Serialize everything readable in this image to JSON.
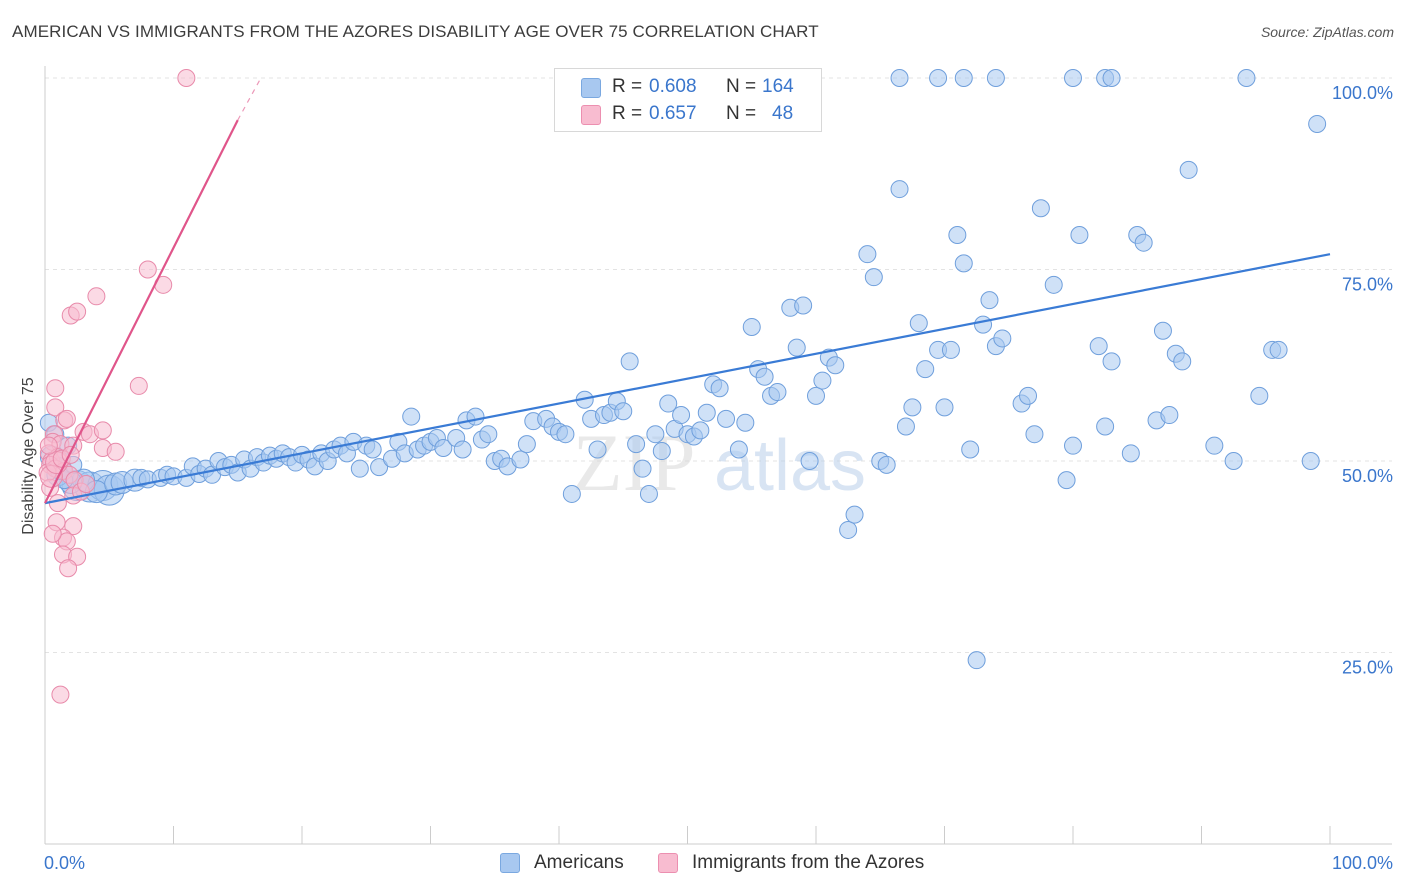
{
  "header": {
    "title": "AMERICAN VS IMMIGRANTS FROM THE AZORES DISABILITY AGE OVER 75 CORRELATION CHART",
    "source": "Source: ZipAtlas.com"
  },
  "watermark": {
    "zip": "ZIP",
    "atlas": "atlas"
  },
  "legend_top": {
    "rows": [
      {
        "r_label": "R =",
        "r_value": "0.608",
        "n_label": "N =",
        "n_value": "164",
        "color": "#a8c8f0",
        "stroke": "#7aa8e0"
      },
      {
        "r_label": "R =",
        "r_value": "0.657",
        "n_label": "N =",
        "n_value": "48",
        "color": "#f8bcd0",
        "stroke": "#ec8fb0"
      }
    ]
  },
  "legend_bottom": {
    "items": [
      {
        "label": "Americans",
        "color": "#a8c8f0",
        "stroke": "#7aa8e0"
      },
      {
        "label": "Immigrants from the Azores",
        "color": "#f8bcd0",
        "stroke": "#ec8fb0"
      }
    ]
  },
  "chart_data": {
    "type": "scatter",
    "title": "AMERICAN VS IMMIGRANTS FROM THE AZORES DISABILITY AGE OVER 75 CORRELATION CHART",
    "xlabel": "",
    "ylabel": "Disability Age Over 75",
    "xlim": [
      0,
      100
    ],
    "ylim": [
      0,
      100
    ],
    "x_tick_labels": [
      "0.0%",
      "100.0%"
    ],
    "y_tick_labels": [
      "25.0%",
      "50.0%",
      "75.0%",
      "100.0%"
    ],
    "y_ticks": [
      25,
      50,
      75,
      100
    ],
    "x_minor_ticks": [
      10,
      20,
      30,
      40,
      50,
      60,
      70,
      80,
      90,
      100
    ],
    "grid": true,
    "series": [
      {
        "name": "Americans",
        "color": "#a8c8f0",
        "stroke": "#6f9fdc",
        "trend": {
          "x": [
            0,
            100
          ],
          "y": [
            44.5,
            77.0
          ],
          "color": "#3a7bd5"
        },
        "points": [
          [
            2.5,
            46.8,
            3
          ],
          [
            3.5,
            46.6,
            3
          ],
          [
            4.5,
            46.8,
            3
          ],
          [
            5.0,
            46.2,
            3
          ],
          [
            3.0,
            47.5,
            2
          ],
          [
            4.0,
            46.0,
            2
          ],
          [
            5.5,
            47.0,
            2
          ],
          [
            2.0,
            47.2,
            2
          ],
          [
            1.0,
            48.2,
            2
          ],
          [
            1.5,
            47.5,
            1
          ],
          [
            6.0,
            47.2,
            2
          ],
          [
            7.0,
            47.5,
            2
          ],
          [
            7.5,
            47.8,
            1
          ],
          [
            8.0,
            47.6,
            1
          ],
          [
            9.0,
            47.8,
            1
          ],
          [
            9.5,
            48.2,
            1
          ],
          [
            10.0,
            48.0,
            1
          ],
          [
            11.0,
            47.8,
            1
          ],
          [
            11.5,
            49.3,
            1
          ],
          [
            12.0,
            48.3,
            1
          ],
          [
            12.5,
            49.0,
            1
          ],
          [
            13.0,
            48.2,
            1
          ],
          [
            13.5,
            50.0,
            1
          ],
          [
            14.0,
            49.2,
            1
          ],
          [
            14.5,
            49.5,
            1
          ],
          [
            15.0,
            48.5,
            1
          ],
          [
            15.5,
            50.2,
            1
          ],
          [
            16.0,
            49.0,
            1
          ],
          [
            16.5,
            50.5,
            1
          ],
          [
            17.0,
            49.8,
            1
          ],
          [
            17.5,
            50.7,
            1
          ],
          [
            18.0,
            50.3,
            1
          ],
          [
            18.5,
            51.0,
            1
          ],
          [
            19.0,
            50.5,
            1
          ],
          [
            19.5,
            49.8,
            1
          ],
          [
            20.0,
            50.8,
            1
          ],
          [
            20.5,
            50.2,
            1
          ],
          [
            21.0,
            49.3,
            1
          ],
          [
            21.5,
            51.0,
            1
          ],
          [
            22.0,
            50.0,
            1
          ],
          [
            22.5,
            51.5,
            1
          ],
          [
            23.0,
            52.0,
            1
          ],
          [
            23.5,
            51.0,
            1
          ],
          [
            24.0,
            52.5,
            1
          ],
          [
            24.5,
            49.0,
            1
          ],
          [
            25.0,
            52.0,
            1
          ],
          [
            25.5,
            51.5,
            1
          ],
          [
            26.0,
            49.2,
            1
          ],
          [
            27.0,
            50.3,
            1
          ],
          [
            27.5,
            52.5,
            1
          ],
          [
            28.0,
            51.0,
            1
          ],
          [
            28.5,
            55.8,
            1
          ],
          [
            29.0,
            51.5,
            1
          ],
          [
            29.5,
            52.0,
            1
          ],
          [
            30.0,
            52.5,
            1
          ],
          [
            30.5,
            53.0,
            1
          ],
          [
            31.0,
            51.7,
            1
          ],
          [
            32.0,
            53.0,
            1
          ],
          [
            32.5,
            51.5,
            1
          ],
          [
            32.8,
            55.3,
            1
          ],
          [
            33.5,
            55.8,
            1
          ],
          [
            34.0,
            52.8,
            1
          ],
          [
            34.5,
            53.5,
            1
          ],
          [
            35.0,
            50.0,
            1
          ],
          [
            35.5,
            50.3,
            1
          ],
          [
            36.0,
            49.3,
            1
          ],
          [
            37.0,
            50.2,
            1
          ],
          [
            37.5,
            52.2,
            1
          ],
          [
            38.0,
            55.2,
            1
          ],
          [
            39.0,
            55.5,
            1
          ],
          [
            39.5,
            54.5,
            1
          ],
          [
            40.0,
            53.8,
            1
          ],
          [
            40.5,
            53.5,
            1
          ],
          [
            41.0,
            45.7,
            1
          ],
          [
            42.0,
            58.0,
            1
          ],
          [
            42.5,
            55.5,
            1
          ],
          [
            43.0,
            51.5,
            1
          ],
          [
            43.5,
            56.0,
            1
          ],
          [
            44.0,
            56.3,
            1
          ],
          [
            44.5,
            57.8,
            1
          ],
          [
            45.0,
            56.5,
            1
          ],
          [
            45.5,
            63.0,
            1
          ],
          [
            46.0,
            52.2,
            1
          ],
          [
            46.5,
            49.0,
            1
          ],
          [
            47.0,
            45.7,
            1
          ],
          [
            47.5,
            53.5,
            1
          ],
          [
            48.0,
            51.3,
            1
          ],
          [
            48.5,
            57.5,
            1
          ],
          [
            49.0,
            54.2,
            1
          ],
          [
            49.5,
            56.0,
            1
          ],
          [
            50.0,
            53.5,
            1
          ],
          [
            50.5,
            53.2,
            1
          ],
          [
            51.0,
            54.0,
            1
          ],
          [
            51.5,
            56.3,
            1
          ],
          [
            52.0,
            60.0,
            1
          ],
          [
            52.5,
            59.5,
            1
          ],
          [
            53.0,
            55.5,
            1
          ],
          [
            54.0,
            51.5,
            1
          ],
          [
            54.5,
            55.0,
            1
          ],
          [
            55.0,
            67.5,
            1
          ],
          [
            55.5,
            62.0,
            1
          ],
          [
            56.0,
            61.0,
            1
          ],
          [
            56.5,
            58.5,
            1
          ],
          [
            57.0,
            59.0,
            1
          ],
          [
            58.0,
            70.0,
            1
          ],
          [
            58.5,
            64.8,
            1
          ],
          [
            59.0,
            70.3,
            1
          ],
          [
            59.5,
            50.0,
            1
          ],
          [
            60.0,
            58.5,
            1
          ],
          [
            60.5,
            60.5,
            1
          ],
          [
            61.0,
            63.5,
            1
          ],
          [
            61.5,
            62.5,
            1
          ],
          [
            62.5,
            41.0,
            1
          ],
          [
            63.0,
            43.0,
            1
          ],
          [
            64.0,
            77.0,
            1
          ],
          [
            64.5,
            74.0,
            1
          ],
          [
            65.0,
            50.0,
            1
          ],
          [
            65.5,
            49.5,
            1
          ],
          [
            66.5,
            85.5,
            1
          ],
          [
            67.0,
            54.5,
            1
          ],
          [
            67.5,
            57.0,
            1
          ],
          [
            68.0,
            68.0,
            1
          ],
          [
            68.5,
            62.0,
            1
          ],
          [
            69.5,
            64.5,
            1
          ],
          [
            70.0,
            57.0,
            1
          ],
          [
            70.5,
            64.5,
            1
          ],
          [
            71.0,
            79.5,
            1
          ],
          [
            71.5,
            75.8,
            1
          ],
          [
            72.0,
            51.5,
            1
          ],
          [
            72.5,
            24.0,
            1
          ],
          [
            73.0,
            67.8,
            1
          ],
          [
            73.5,
            71.0,
            1
          ],
          [
            74.0,
            65.0,
            1
          ],
          [
            74.5,
            66.0,
            1
          ],
          [
            76.0,
            57.5,
            1
          ],
          [
            76.5,
            58.5,
            1
          ],
          [
            77.0,
            53.5,
            1
          ],
          [
            77.5,
            83.0,
            1
          ],
          [
            78.5,
            73.0,
            1
          ],
          [
            79.5,
            47.5,
            1
          ],
          [
            80.0,
            52.0,
            1
          ],
          [
            80.5,
            79.5,
            1
          ],
          [
            82.0,
            65.0,
            1
          ],
          [
            82.5,
            54.5,
            1
          ],
          [
            83.0,
            63.0,
            1
          ],
          [
            84.5,
            51.0,
            1
          ],
          [
            85.0,
            79.5,
            1
          ],
          [
            85.5,
            78.5,
            1
          ],
          [
            86.5,
            55.3,
            1
          ],
          [
            87.0,
            67.0,
            1
          ],
          [
            87.5,
            56.0,
            1
          ],
          [
            88.0,
            64.0,
            1
          ],
          [
            88.5,
            63.0,
            1
          ],
          [
            89.0,
            88.0,
            1
          ],
          [
            91.0,
            52.0,
            1
          ],
          [
            92.5,
            50.0,
            1
          ],
          [
            94.5,
            58.5,
            1
          ],
          [
            95.5,
            64.5,
            1
          ],
          [
            96.0,
            64.5,
            1
          ],
          [
            98.5,
            50.0,
            1
          ],
          [
            99.0,
            94.0,
            1
          ],
          [
            66.5,
            100,
            1
          ],
          [
            69.5,
            100,
            1
          ],
          [
            71.5,
            100,
            1
          ],
          [
            74.0,
            100,
            1
          ],
          [
            80.0,
            100,
            1
          ],
          [
            82.5,
            100,
            1
          ],
          [
            83.0,
            100,
            1
          ],
          [
            93.5,
            100,
            1
          ],
          [
            0.3,
            55.0,
            1
          ],
          [
            0.8,
            53.5,
            1
          ],
          [
            0.5,
            50.5,
            2
          ],
          [
            1.2,
            49.0,
            2
          ],
          [
            1.8,
            52.0,
            1
          ],
          [
            2.2,
            49.5,
            1
          ]
        ]
      },
      {
        "name": "Immigrants from the Azores",
        "color": "#f8bcd0",
        "stroke": "#e88aaa",
        "trend": {
          "x": [
            0,
            15
          ],
          "y": [
            44.5,
            94.5
          ],
          "dashed_to": [
            16.8,
            100.0
          ],
          "color": "#e0558a"
        },
        "points": [
          [
            11.0,
            100.0,
            1
          ],
          [
            8.0,
            75.0,
            1
          ],
          [
            9.2,
            73.0,
            1
          ],
          [
            4.0,
            71.5,
            1
          ],
          [
            2.0,
            69.0,
            1
          ],
          [
            2.5,
            69.5,
            1
          ],
          [
            7.3,
            59.8,
            1
          ],
          [
            0.8,
            59.5,
            1
          ],
          [
            0.8,
            57.0,
            1
          ],
          [
            1.5,
            55.3,
            1
          ],
          [
            1.7,
            55.5,
            1
          ],
          [
            0.7,
            53.5,
            1
          ],
          [
            3.0,
            53.8,
            1
          ],
          [
            3.5,
            53.5,
            1
          ],
          [
            4.5,
            54.0,
            1
          ],
          [
            0.6,
            52.5,
            1
          ],
          [
            1.2,
            52.2,
            1
          ],
          [
            2.2,
            52.0,
            1
          ],
          [
            4.5,
            51.7,
            1
          ],
          [
            5.5,
            51.2,
            1
          ],
          [
            0.3,
            51.0,
            1
          ],
          [
            0.5,
            50.0,
            1
          ],
          [
            1.0,
            50.5,
            1
          ],
          [
            0.4,
            49.5,
            1
          ],
          [
            0.8,
            49.0,
            1
          ],
          [
            1.5,
            48.7,
            1
          ],
          [
            0.2,
            48.5,
            1
          ],
          [
            1.9,
            48.2,
            1
          ],
          [
            2.3,
            47.5,
            1
          ],
          [
            0.4,
            46.5,
            1
          ],
          [
            2.2,
            45.5,
            1
          ],
          [
            2.8,
            46.0,
            1
          ],
          [
            1.0,
            44.5,
            1
          ],
          [
            0.9,
            42.0,
            1
          ],
          [
            2.2,
            41.5,
            1
          ],
          [
            1.4,
            40.0,
            1
          ],
          [
            1.7,
            39.5,
            1
          ],
          [
            0.6,
            40.5,
            1
          ],
          [
            1.4,
            37.8,
            1
          ],
          [
            2.5,
            37.5,
            1
          ],
          [
            1.8,
            36.0,
            1
          ],
          [
            1.2,
            19.5,
            1
          ],
          [
            0.5,
            48.0,
            2
          ],
          [
            0.9,
            49.8,
            2
          ],
          [
            1.3,
            50.3,
            1
          ],
          [
            0.3,
            52.0,
            1
          ],
          [
            2.0,
            50.8,
            1
          ],
          [
            3.2,
            47.0,
            1
          ]
        ]
      }
    ]
  }
}
